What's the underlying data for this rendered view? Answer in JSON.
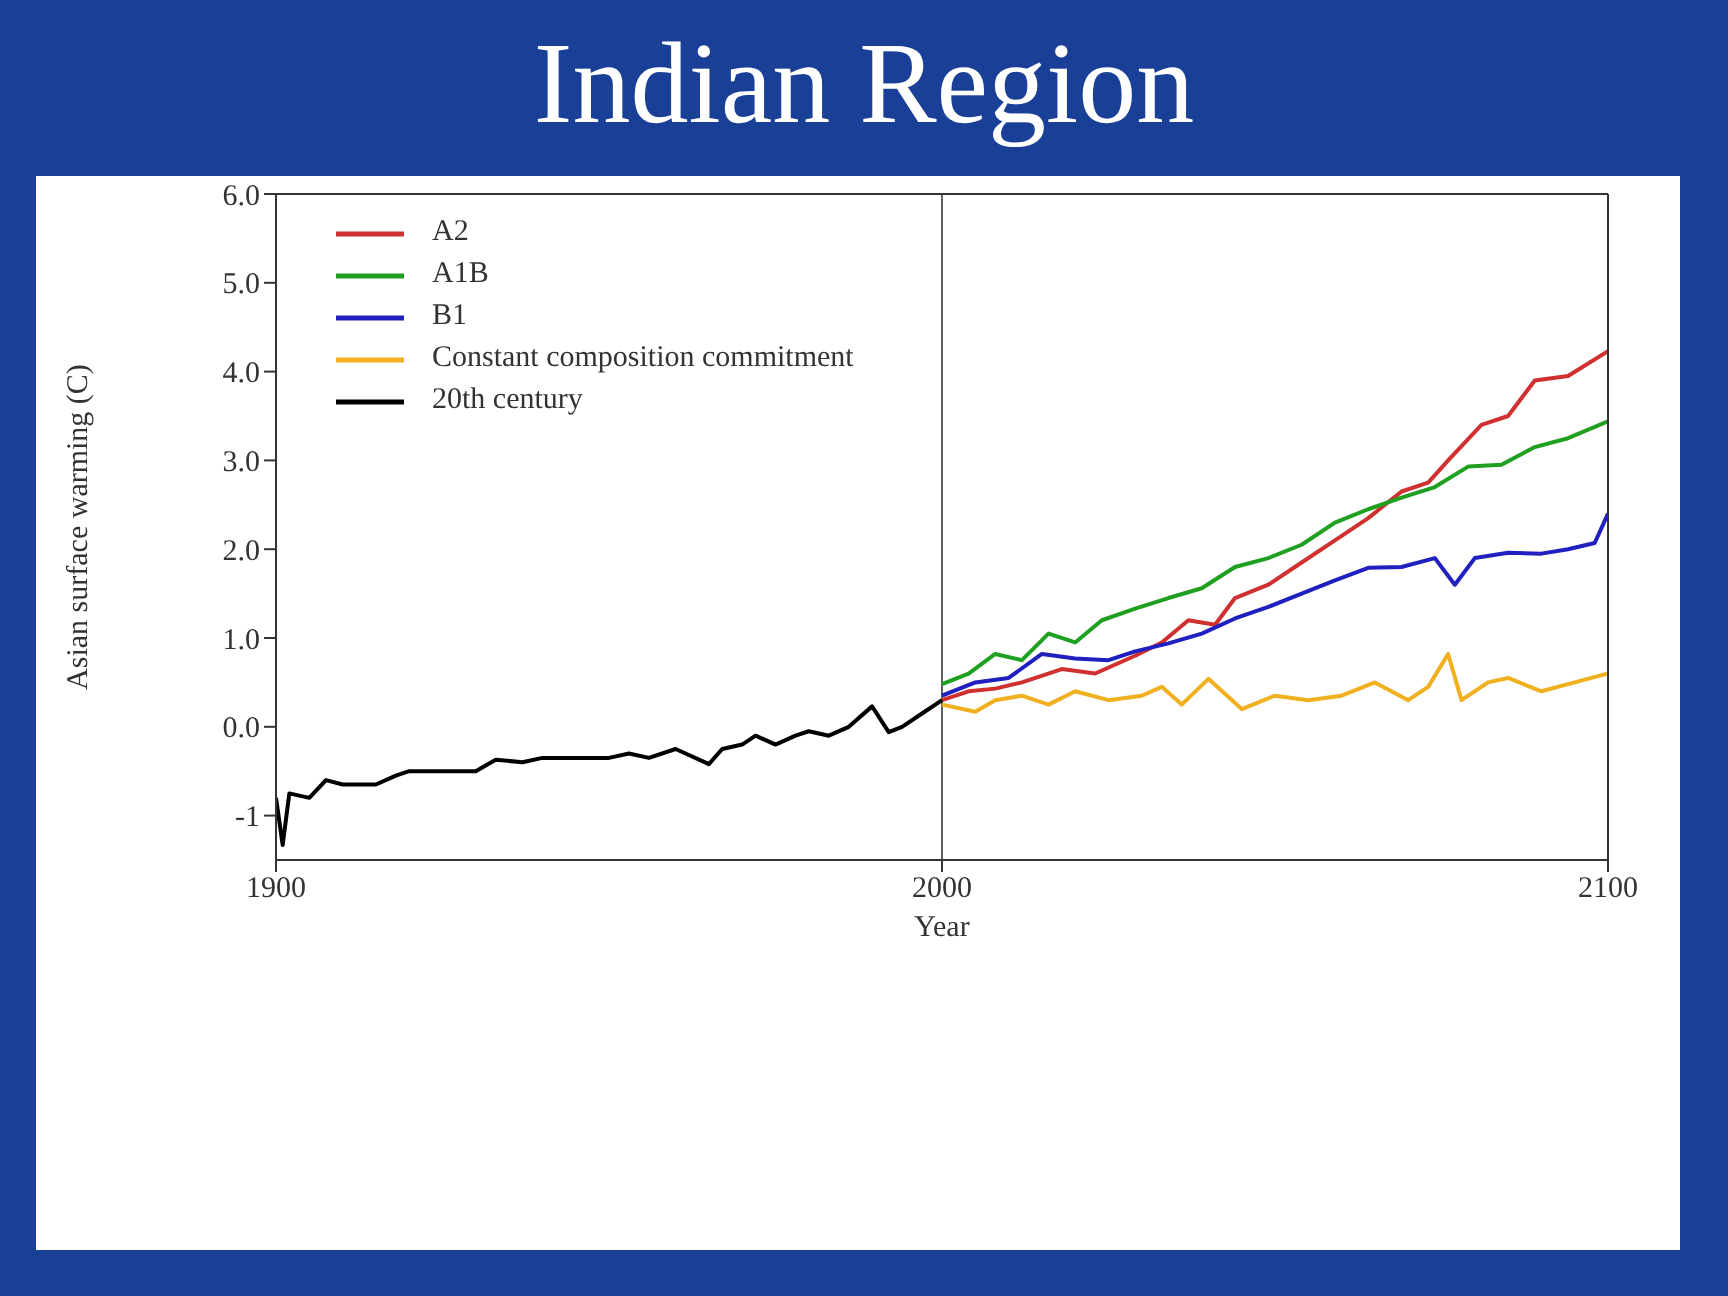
{
  "chart_data": {
    "type": "line",
    "title": "Indian Region",
    "xlabel": "Year",
    "ylabel": "Asian surface warming (C)",
    "xlim": [
      1900,
      2100
    ],
    "xticks": [
      1900,
      2000,
      2100
    ],
    "ylim": [
      -1.5,
      6
    ],
    "yticks": [
      {
        "value": 6,
        "label": "6.0"
      },
      {
        "value": 5,
        "label": "5.0"
      },
      {
        "value": 4,
        "label": "4.0"
      },
      {
        "value": 3,
        "label": "3.0"
      },
      {
        "value": 2,
        "label": "2.0"
      },
      {
        "value": 1,
        "label": "1.0"
      },
      {
        "value": 0,
        "label": "0.0"
      },
      -1
    ],
    "legend": "top left",
    "marker": "none",
    "line_style": "solid",
    "ref_lines": [
      {
        "axis": "x",
        "value": 2000,
        "color": "#606060"
      }
    ],
    "series": [
      {
        "name": "A2",
        "color": "#d03030",
        "x": [
          2000,
          2004,
          2008,
          2012,
          2018,
          2023,
          2029,
          2033,
          2037,
          2041,
          2044,
          2049,
          2054,
          2059,
          2064,
          2069,
          2073,
          2076,
          2081,
          2085,
          2089,
          2094,
          2100
        ],
        "values": [
          0.3,
          0.4,
          0.43,
          0.5,
          0.65,
          0.6,
          0.8,
          0.95,
          1.2,
          1.15,
          1.45,
          1.6,
          1.85,
          2.1,
          2.35,
          2.65,
          2.75,
          3.0,
          3.4,
          3.5,
          3.9,
          3.95,
          4.23
        ]
      },
      {
        "name": "A1B",
        "color": "#20a020",
        "x": [
          2000,
          2004,
          2008,
          2012,
          2016,
          2020,
          2024,
          2029,
          2034,
          2039,
          2044,
          2049,
          2054,
          2059,
          2064,
          2069,
          2074,
          2079,
          2084,
          2089,
          2094,
          2100
        ],
        "values": [
          0.48,
          0.6,
          0.82,
          0.75,
          1.05,
          0.95,
          1.2,
          1.33,
          1.45,
          1.56,
          1.8,
          1.9,
          2.05,
          2.3,
          2.45,
          2.58,
          2.7,
          2.93,
          2.95,
          3.15,
          3.25,
          3.44
        ]
      },
      {
        "name": "B1",
        "color": "#2020c0",
        "x": [
          2000,
          2005,
          2010,
          2015,
          2020,
          2025,
          2029,
          2034,
          2039,
          2044,
          2049,
          2054,
          2059,
          2064,
          2069,
          2074,
          2077,
          2080,
          2085,
          2090,
          2094,
          2098,
          2100
        ],
        "values": [
          0.35,
          0.5,
          0.55,
          0.82,
          0.77,
          0.75,
          0.85,
          0.94,
          1.05,
          1.22,
          1.35,
          1.5,
          1.65,
          1.79,
          1.8,
          1.9,
          1.6,
          1.9,
          1.96,
          1.95,
          2.0,
          2.07,
          2.4
        ]
      },
      {
        "name": "Constant composition commitment",
        "color": "#f0b020",
        "x": [
          2000,
          2005,
          2008,
          2012,
          2016,
          2020,
          2025,
          2030,
          2033,
          2036,
          2040,
          2045,
          2050,
          2055,
          2060,
          2065,
          2070,
          2073,
          2076,
          2078,
          2082,
          2085,
          2090,
          2095,
          2100
        ],
        "values": [
          0.25,
          0.17,
          0.3,
          0.35,
          0.25,
          0.4,
          0.3,
          0.35,
          0.45,
          0.25,
          0.54,
          0.2,
          0.35,
          0.3,
          0.35,
          0.5,
          0.3,
          0.45,
          0.82,
          0.3,
          0.5,
          0.55,
          0.4,
          0.5,
          0.6
        ]
      },
      {
        "name": "20th century",
        "color": "#000000",
        "x": [
          1900,
          1901,
          1902,
          1905,
          1907.5,
          1910,
          1915,
          1918,
          1920,
          1925,
          1930,
          1933,
          1937,
          1940,
          1945,
          1950,
          1953,
          1956,
          1960,
          1965,
          1967,
          1970,
          1972,
          1975,
          1978,
          1980,
          1983,
          1986,
          1989.5,
          1992,
          1994,
          1997,
          2000
        ],
        "values": [
          -0.8,
          -1.33,
          -0.75,
          -0.8,
          -0.6,
          -0.65,
          -0.65,
          -0.55,
          -0.5,
          -0.5,
          -0.5,
          -0.37,
          -0.4,
          -0.35,
          -0.35,
          -0.35,
          -0.3,
          -0.35,
          -0.25,
          -0.42,
          -0.25,
          -0.2,
          -0.1,
          -0.2,
          -0.1,
          -0.05,
          -0.1,
          0.0,
          0.23,
          -0.06,
          0.0,
          0.15,
          0.3
        ]
      }
    ]
  }
}
